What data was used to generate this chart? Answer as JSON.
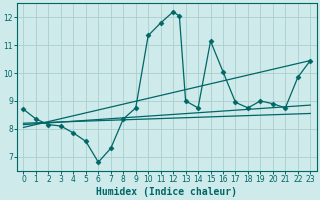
{
  "xlabel": "Humidex (Indice chaleur)",
  "background_color": "#ceeaea",
  "line_color": "#006666",
  "grid_color": "#aacfcf",
  "xlim": [
    -0.5,
    23.5
  ],
  "ylim": [
    6.5,
    12.5
  ],
  "xticks": [
    0,
    1,
    2,
    3,
    4,
    5,
    6,
    7,
    8,
    9,
    10,
    11,
    12,
    13,
    14,
    15,
    16,
    17,
    18,
    19,
    20,
    21,
    22,
    23
  ],
  "yticks": [
    7,
    8,
    9,
    10,
    11,
    12
  ],
  "curve1_x": [
    0,
    1,
    2,
    3,
    4,
    5,
    6,
    7,
    8,
    9,
    10,
    11,
    12,
    12.5,
    13,
    14,
    15,
    16,
    17,
    18,
    19,
    20,
    21,
    22,
    23
  ],
  "curve1_y": [
    8.7,
    8.35,
    8.15,
    8.1,
    7.85,
    7.55,
    6.8,
    7.3,
    8.35,
    8.75,
    11.35,
    11.8,
    12.2,
    12.05,
    9.0,
    8.75,
    11.15,
    10.05,
    8.95,
    8.75,
    9.0,
    8.9,
    8.75,
    9.85,
    10.45
  ],
  "curve2_x": [
    0,
    23
  ],
  "curve2_y": [
    8.05,
    10.45
  ],
  "curve3_x": [
    0,
    23
  ],
  "curve3_y": [
    8.15,
    8.85
  ],
  "curve4_x": [
    0,
    23
  ],
  "curve4_y": [
    8.2,
    8.55
  ],
  "marker": "D",
  "markersize": 2.5,
  "linewidth": 0.9,
  "tick_fontsize": 5.5,
  "xlabel_fontsize": 7
}
